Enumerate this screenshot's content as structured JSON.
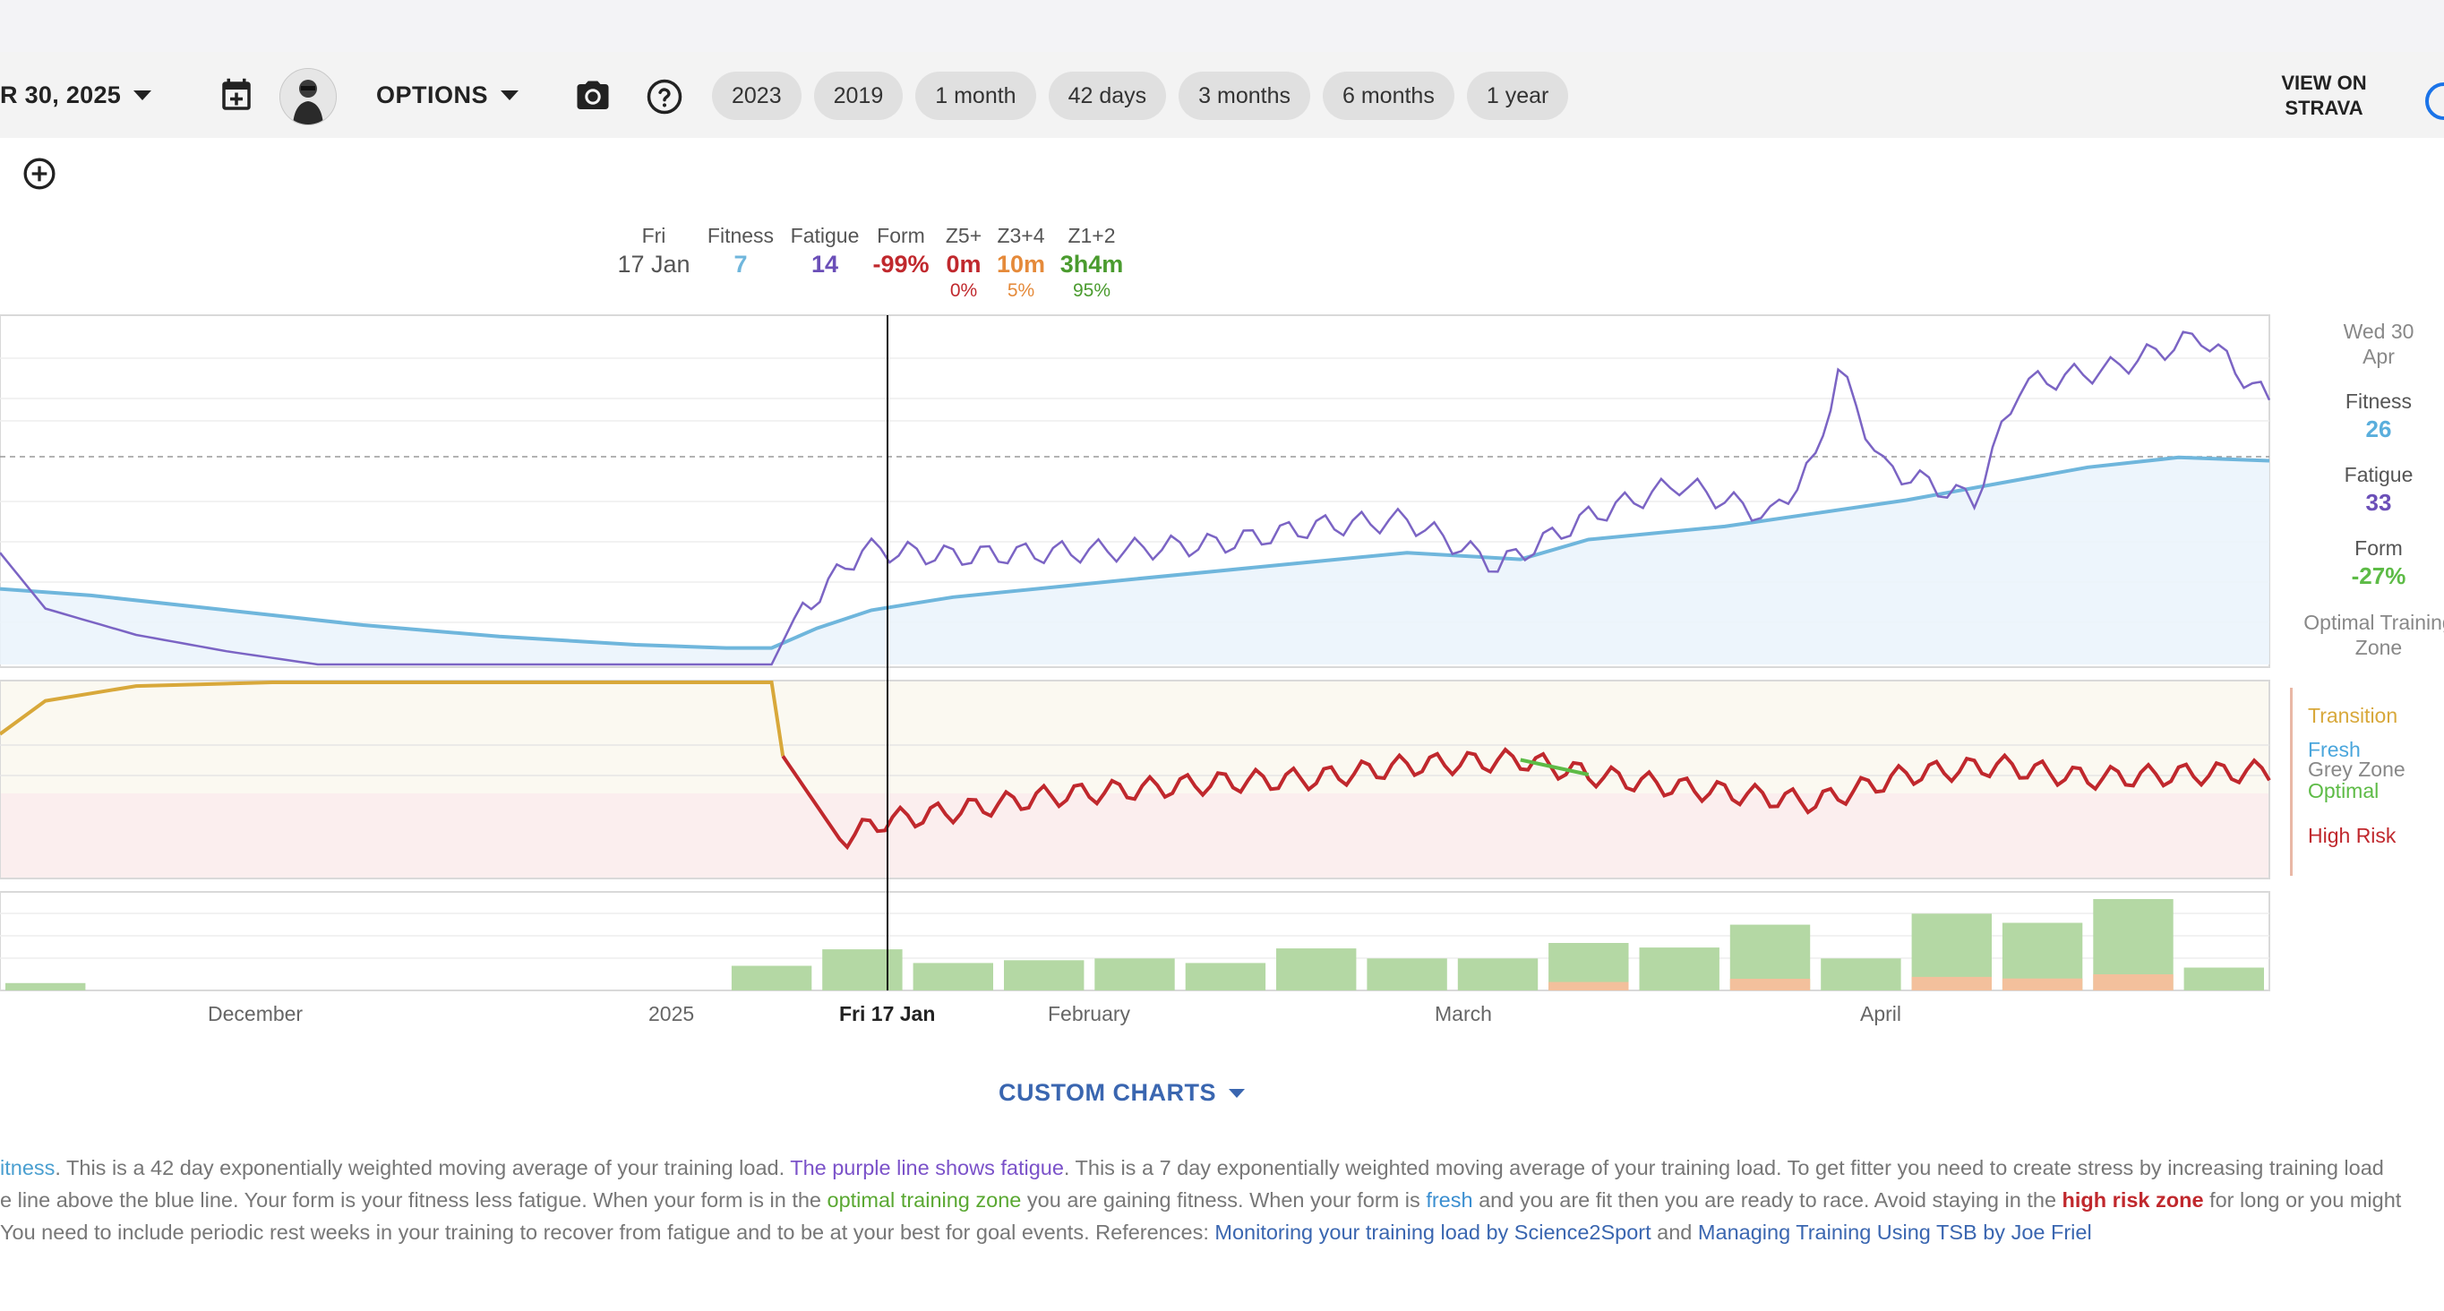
{
  "toolbar": {
    "date_label": "R 30, 2025",
    "options_label": "OPTIONS",
    "chips": [
      "2023",
      "2019",
      "1 month",
      "42 days",
      "3 months",
      "6 months",
      "1 year"
    ],
    "strava_line1": "VIEW ON",
    "strava_line2": "STRAVA",
    "icons": [
      "calendar-add-icon",
      "camera-icon",
      "help-icon",
      "search-icon",
      "add-circle-icon"
    ]
  },
  "hover": {
    "day": "Fri",
    "date": "17 Jan",
    "fitness_label": "Fitness",
    "fitness_value": "7",
    "fatigue_label": "Fatigue",
    "fatigue_value": "14",
    "form_label": "Form",
    "form_value": "-99%",
    "z5_label": "Z5+",
    "z5_value": "0m",
    "z5_pct": "0%",
    "z34_label": "Z3+4",
    "z34_value": "10m",
    "z34_pct": "5%",
    "z12_label": "Z1+2",
    "z12_value": "3h4m",
    "z12_pct": "95%"
  },
  "current": {
    "date_line1": "Wed 30",
    "date_line2": "Apr",
    "fitness_label": "Fitness",
    "fitness_value": "26",
    "fatigue_label": "Fatigue",
    "fatigue_value": "33",
    "form_label": "Form",
    "form_value": "-27%",
    "zone_line1": "Optimal Training",
    "zone_line2": "Zone"
  },
  "zones": {
    "transition": "Transition",
    "fresh": "Fresh",
    "grey": "Grey Zone",
    "optimal": "Optimal",
    "high_risk": "High Risk"
  },
  "x_axis": {
    "december": "December",
    "y2025": "2025",
    "cursor": "Fri 17 Jan",
    "february": "February",
    "march": "March",
    "april": "April"
  },
  "custom_charts_label": "CUSTOM CHARTS",
  "explanation": {
    "l1_a": "itness",
    "l1_b": ". This is a 42 day exponentially weighted moving average of your training load. ",
    "l1_c": "The purple line shows fatigue",
    "l1_d": ". This is a 7 day exponentially weighted moving average of your training load. To get fitter you need to create stress by increasing training load",
    "l2_a": "e line above the blue line. Your form is your fitness less fatigue. When your form is in the ",
    "l2_b": "optimal training zone",
    "l2_c": " you are gaining fitness. When your form is ",
    "l2_d": "fresh",
    "l2_e": " and you are fit then you are ready to race. Avoid staying in the ",
    "l2_f": "high risk zone",
    "l2_g": " for long or you might",
    "l3_a": " You need to include periodic rest weeks in your training to recover from fatigue and to be at your best for goal events. References: ",
    "l3_b": "Monitoring your training load by Science2Sport",
    "l3_c": " and ",
    "l3_d": "Managing Training Using TSB by Joe Friel"
  },
  "colors": {
    "fitness": "#6fb6dc",
    "fatigue": "#7b64c4",
    "form_risk": "#c0282d",
    "form_optimal": "#5dbb46",
    "transition": "#d8a83a",
    "bar_green": "#b4d8a4",
    "bar_orange": "#f3c09c",
    "bar_pink": "#e89ab4"
  },
  "chart_data": {
    "type": "line",
    "series": [
      {
        "name": "Fitness",
        "points": [
          [
            0,
            0.23
          ],
          [
            0.04,
            0.21
          ],
          [
            0.1,
            0.165
          ],
          [
            0.16,
            0.12
          ],
          [
            0.22,
            0.085
          ],
          [
            0.28,
            0.06
          ],
          [
            0.32,
            0.05
          ],
          [
            0.34,
            0.05
          ],
          [
            0.36,
            0.11
          ],
          [
            0.384,
            0.165
          ],
          [
            0.42,
            0.205
          ],
          [
            0.5,
            0.26
          ],
          [
            0.56,
            0.3
          ],
          [
            0.62,
            0.34
          ],
          [
            0.67,
            0.32
          ],
          [
            0.7,
            0.38
          ],
          [
            0.76,
            0.42
          ],
          [
            0.8,
            0.46
          ],
          [
            0.84,
            0.5
          ],
          [
            0.88,
            0.55
          ],
          [
            0.92,
            0.6
          ],
          [
            0.96,
            0.63
          ],
          [
            1.0,
            0.62
          ]
        ]
      },
      {
        "name": "Fatigue",
        "points": [
          [
            0,
            0.34
          ],
          [
            0.02,
            0.17
          ],
          [
            0.06,
            0.09
          ],
          [
            0.1,
            0.04
          ],
          [
            0.14,
            0.0
          ],
          [
            0.2,
            0.0
          ],
          [
            0.3,
            0.0
          ],
          [
            0.34,
            0.0
          ],
          [
            0.35,
            0.14
          ],
          [
            0.38,
            0.35
          ],
          [
            0.42,
            0.33
          ],
          [
            0.46,
            0.34
          ],
          [
            0.5,
            0.35
          ],
          [
            0.54,
            0.37
          ],
          [
            0.58,
            0.42
          ],
          [
            0.62,
            0.44
          ],
          [
            0.66,
            0.3
          ],
          [
            0.7,
            0.45
          ],
          [
            0.74,
            0.55
          ],
          [
            0.78,
            0.45
          ],
          [
            0.8,
            0.62
          ],
          [
            0.81,
            0.9
          ],
          [
            0.83,
            0.6
          ],
          [
            0.87,
            0.5
          ],
          [
            0.89,
            0.85
          ],
          [
            0.93,
            0.9
          ],
          [
            0.97,
            1.0
          ],
          [
            1.0,
            0.8
          ]
        ]
      },
      {
        "name": "Form",
        "points": [
          [
            0,
            0.72
          ],
          [
            0.02,
            0.9
          ],
          [
            0.06,
            0.98
          ],
          [
            0.12,
            1.0
          ],
          [
            0.34,
            1.0
          ],
          [
            0.345,
            0.6
          ],
          [
            0.37,
            0.15
          ],
          [
            0.39,
            0.25
          ],
          [
            0.42,
            0.3
          ],
          [
            0.46,
            0.38
          ],
          [
            0.5,
            0.42
          ],
          [
            0.54,
            0.46
          ],
          [
            0.58,
            0.48
          ],
          [
            0.62,
            0.55
          ],
          [
            0.67,
            0.58
          ],
          [
            0.7,
            0.5
          ],
          [
            0.74,
            0.43
          ],
          [
            0.8,
            0.35
          ],
          [
            0.84,
            0.5
          ],
          [
            0.88,
            0.55
          ],
          [
            0.92,
            0.48
          ],
          [
            0.96,
            0.5
          ],
          [
            1.0,
            0.52
          ]
        ]
      }
    ],
    "bars": [
      0.08,
      0,
      0,
      0,
      0,
      0,
      0,
      0,
      0.27,
      0.45,
      0.3,
      0.33,
      0.35,
      0.3,
      0.46,
      0.35,
      0.35,
      0.52,
      0.47,
      0.72,
      0.35,
      0.84,
      0.74,
      1.0,
      0.25
    ]
  }
}
